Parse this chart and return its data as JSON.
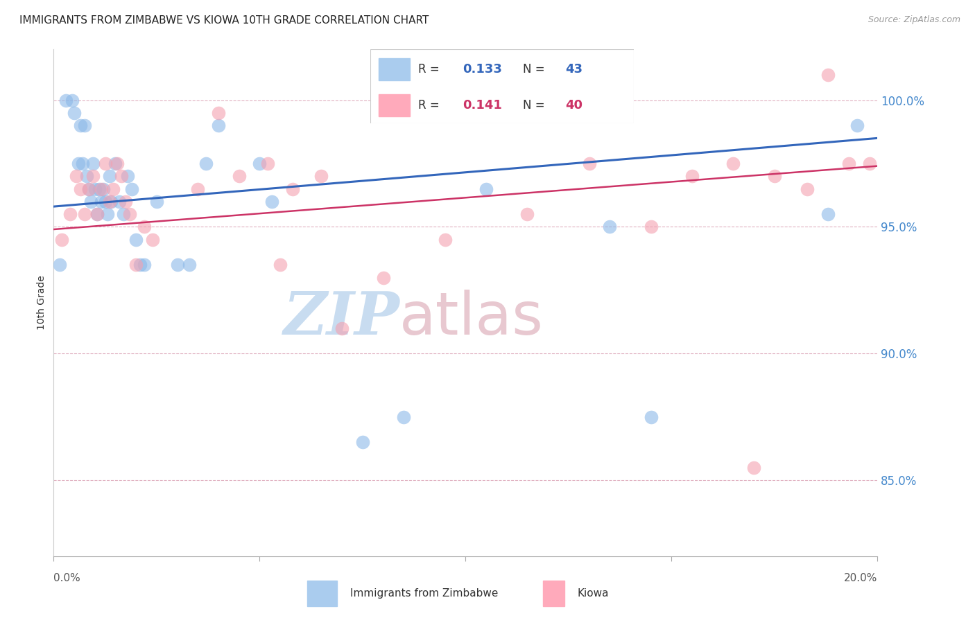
{
  "title": "IMMIGRANTS FROM ZIMBABWE VS KIOWA 10TH GRADE CORRELATION CHART",
  "source": "Source: ZipAtlas.com",
  "ylabel": "10th Grade",
  "blue_label": "Immigrants from Zimbabwe",
  "pink_label": "Kiowa",
  "blue_R": 0.133,
  "blue_N": 43,
  "pink_R": 0.141,
  "pink_N": 40,
  "blue_color": "#8BB8E8",
  "pink_color": "#F4A0B0",
  "blue_line_color": "#3366BB",
  "pink_line_color": "#CC3366",
  "background_color": "#FFFFFF",
  "watermark_zip": "ZIP",
  "watermark_atlas": "atlas",
  "watermark_color_zip": "#C8DCF0",
  "watermark_color_atlas": "#E8C8D0",
  "grid_color": "#E0B0C0",
  "xlim": [
    0.0,
    20.0
  ],
  "ylim": [
    82.0,
    102.0
  ],
  "yticks": [
    85.0,
    90.0,
    95.0,
    100.0
  ],
  "blue_x": [
    0.15,
    0.3,
    0.45,
    0.5,
    0.6,
    0.65,
    0.7,
    0.75,
    0.8,
    0.85,
    0.9,
    0.95,
    1.0,
    1.05,
    1.1,
    1.15,
    1.2,
    1.25,
    1.3,
    1.35,
    1.4,
    1.5,
    1.6,
    1.7,
    1.8,
    1.9,
    2.0,
    2.1,
    2.2,
    2.5,
    3.0,
    3.3,
    3.7,
    4.0,
    5.0,
    5.3,
    7.5,
    8.5,
    10.5,
    13.5,
    14.5,
    18.8,
    19.5
  ],
  "blue_y": [
    93.5,
    100.0,
    100.0,
    99.5,
    97.5,
    99.0,
    97.5,
    99.0,
    97.0,
    96.5,
    96.0,
    97.5,
    96.5,
    95.5,
    96.5,
    96.0,
    96.5,
    96.0,
    95.5,
    97.0,
    96.0,
    97.5,
    96.0,
    95.5,
    97.0,
    96.5,
    94.5,
    93.5,
    93.5,
    96.0,
    93.5,
    93.5,
    97.5,
    99.0,
    97.5,
    96.0,
    86.5,
    87.5,
    96.5,
    95.0,
    87.5,
    95.5,
    99.0
  ],
  "pink_x": [
    0.2,
    0.4,
    0.55,
    0.65,
    0.75,
    0.85,
    0.95,
    1.05,
    1.15,
    1.25,
    1.35,
    1.45,
    1.55,
    1.65,
    1.75,
    1.85,
    2.0,
    2.2,
    2.4,
    3.5,
    4.0,
    4.5,
    5.2,
    5.8,
    6.5,
    8.0,
    11.5,
    13.0,
    14.5,
    15.5,
    16.5,
    17.5,
    18.3,
    18.8,
    19.3,
    19.8,
    7.0,
    9.5,
    5.5,
    17.0
  ],
  "pink_y": [
    94.5,
    95.5,
    97.0,
    96.5,
    95.5,
    96.5,
    97.0,
    95.5,
    96.5,
    97.5,
    96.0,
    96.5,
    97.5,
    97.0,
    96.0,
    95.5,
    93.5,
    95.0,
    94.5,
    96.5,
    99.5,
    97.0,
    97.5,
    96.5,
    97.0,
    93.0,
    95.5,
    97.5,
    95.0,
    97.0,
    97.5,
    97.0,
    96.5,
    101.0,
    97.5,
    97.5,
    91.0,
    94.5,
    93.5,
    85.5
  ]
}
